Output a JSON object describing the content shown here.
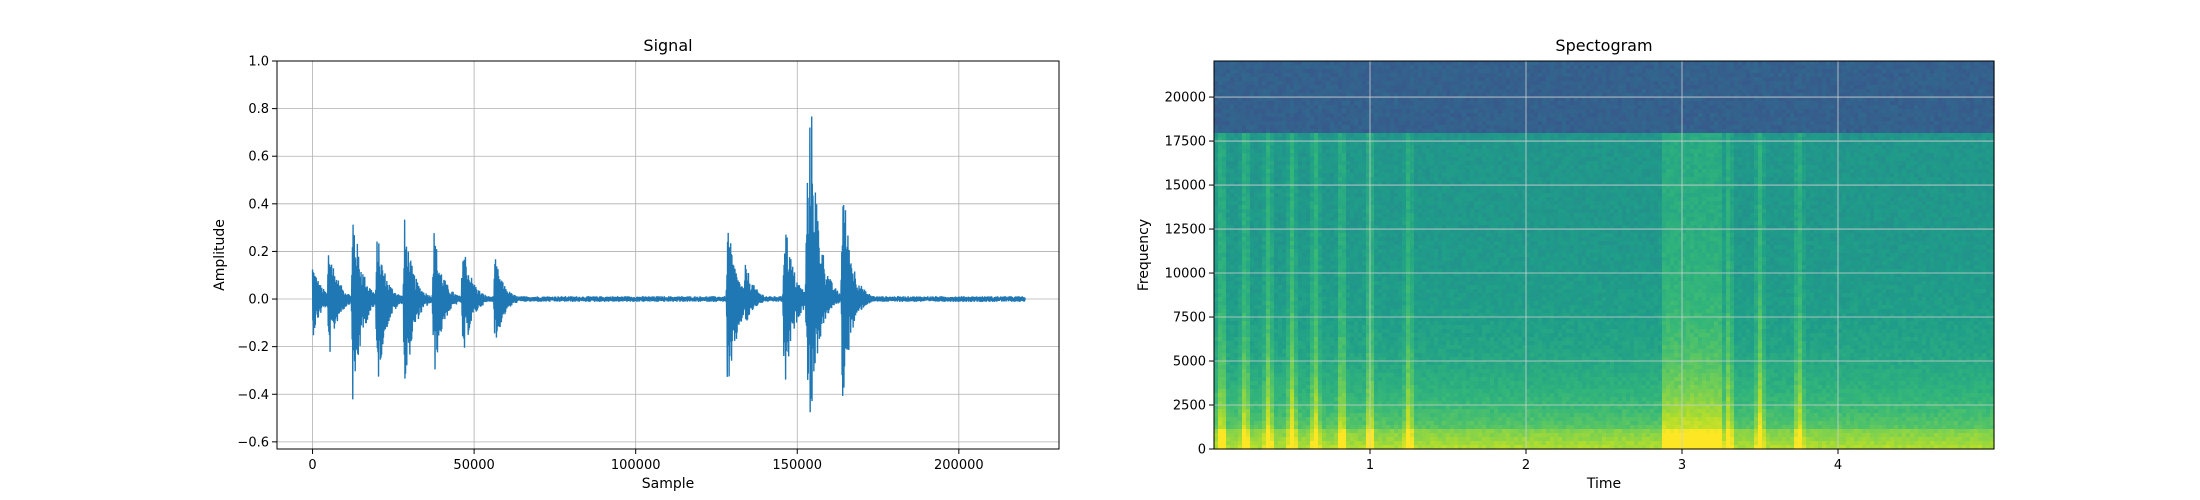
{
  "chart_data": [
    {
      "type": "line",
      "title": "Signal",
      "xlabel": "Sample",
      "ylabel": "Amplitude",
      "xlim": [
        -11000,
        231000
      ],
      "ylim": [
        -0.63,
        1.0
      ],
      "xticks": [
        0,
        50000,
        100000,
        150000,
        200000
      ],
      "xtick_labels": [
        "0",
        "50000",
        "100000",
        "150000",
        "200000"
      ],
      "yticks": [
        1.0,
        0.8,
        0.6,
        0.4,
        0.2,
        0.0,
        -0.2,
        -0.4,
        -0.6
      ],
      "ytick_labels": [
        "1.0",
        "0.8",
        "0.6",
        "0.4",
        "0.2",
        "0.0",
        "−0.2",
        "−0.4",
        "−0.6"
      ],
      "grid": true,
      "color": "#1f77b4",
      "num_samples": 220500,
      "noise_floor": 0.012,
      "events": [
        {
          "x": 0,
          "pos": 0.16,
          "neg": -0.17
        },
        {
          "x": 5000,
          "pos": 0.26,
          "neg": -0.27
        },
        {
          "x": 12500,
          "pos": 0.4,
          "neg": -0.5
        },
        {
          "x": 20000,
          "pos": 0.29,
          "neg": -0.4
        },
        {
          "x": 28500,
          "pos": 0.34,
          "neg": -0.44
        },
        {
          "x": 37500,
          "pos": 0.31,
          "neg": -0.36
        },
        {
          "x": 46500,
          "pos": 0.27,
          "neg": -0.29
        },
        {
          "x": 56500,
          "pos": 0.18,
          "neg": -0.22
        },
        {
          "x": 128500,
          "pos": 0.33,
          "neg": -0.51
        },
        {
          "x": 134000,
          "pos": 0.16,
          "neg": -0.12
        },
        {
          "x": 146000,
          "pos": 0.39,
          "neg": -0.44
        },
        {
          "x": 153000,
          "pos": 0.58,
          "neg": -0.38
        },
        {
          "x": 154000,
          "pos": 0.94,
          "neg": -0.56
        },
        {
          "x": 164000,
          "pos": 0.55,
          "neg": -0.46
        }
      ]
    },
    {
      "type": "heatmap",
      "title": "Spectogram",
      "xlabel": "Time",
      "ylabel": "Frequency",
      "xlim": [
        0,
        5.0
      ],
      "ylim": [
        0,
        22050
      ],
      "xticks": [
        1,
        2,
        3,
        4
      ],
      "xtick_labels": [
        "1",
        "2",
        "3",
        "4"
      ],
      "yticks": [
        0,
        2500,
        5000,
        7500,
        10000,
        12500,
        15000,
        17500,
        20000
      ],
      "ytick_labels": [
        "0",
        "2500",
        "5000",
        "7500",
        "10000",
        "12500",
        "15000",
        "17500",
        "20000"
      ],
      "grid": true,
      "colormap": "viridis",
      "cutoff_frequency": 18000,
      "onsets": [
        0.05,
        0.2,
        0.35,
        0.5,
        0.65,
        0.82,
        1.0,
        1.25,
        2.95,
        3.05,
        3.3,
        3.5,
        3.75
      ]
    }
  ]
}
